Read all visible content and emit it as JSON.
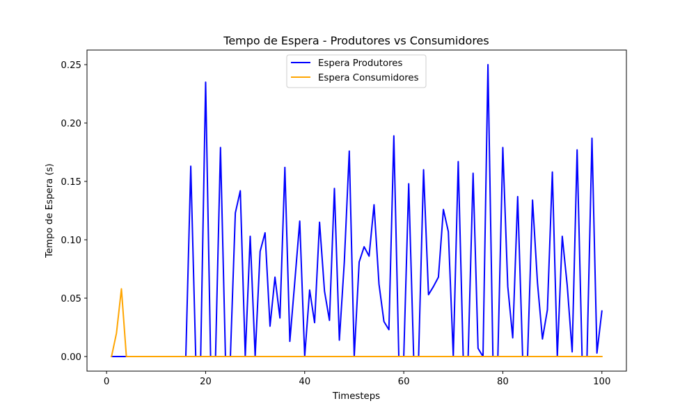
{
  "chart_data": {
    "type": "line",
    "title": "Tempo de Espera - Produtores vs Consumidores",
    "xlabel": "Timesteps",
    "ylabel": "Tempo de Espera (s)",
    "xlim": [
      -3.95,
      104.95
    ],
    "ylim": [
      -0.0125,
      0.2625
    ],
    "xticks": [
      0,
      20,
      40,
      60,
      80,
      100
    ],
    "xtick_labels": [
      "0",
      "20",
      "40",
      "60",
      "80",
      "100"
    ],
    "yticks": [
      0.0,
      0.05,
      0.1,
      0.15,
      0.2,
      0.25
    ],
    "ytick_labels": [
      "0.00",
      "0.05",
      "0.10",
      "0.15",
      "0.20",
      "0.25"
    ],
    "grid": false,
    "legend_position": "top-center",
    "x": [
      1,
      2,
      3,
      4,
      5,
      6,
      7,
      8,
      9,
      10,
      11,
      12,
      13,
      14,
      15,
      16,
      17,
      18,
      19,
      20,
      21,
      22,
      23,
      24,
      25,
      26,
      27,
      28,
      29,
      30,
      31,
      32,
      33,
      34,
      35,
      36,
      37,
      38,
      39,
      40,
      41,
      42,
      43,
      44,
      45,
      46,
      47,
      48,
      49,
      50,
      51,
      52,
      53,
      54,
      55,
      56,
      57,
      58,
      59,
      60,
      61,
      62,
      63,
      64,
      65,
      66,
      67,
      68,
      69,
      70,
      71,
      72,
      73,
      74,
      75,
      76,
      77,
      78,
      79,
      80,
      81,
      82,
      83,
      84,
      85,
      86,
      87,
      88,
      89,
      90,
      91,
      92,
      93,
      94,
      95,
      96,
      97,
      98,
      99,
      100
    ],
    "series": [
      {
        "name": "Espera Produtores",
        "color": "#0000ff",
        "values": [
          0,
          0,
          0,
          0,
          0,
          0,
          0,
          0,
          0,
          0,
          0,
          0,
          0,
          0,
          0,
          0,
          0.163,
          0,
          0,
          0.235,
          0,
          0,
          0.179,
          0,
          0,
          0.123,
          0.142,
          0,
          0.103,
          0,
          0.09,
          0.106,
          0.026,
          0.068,
          0.033,
          0.162,
          0.013,
          0.064,
          0.116,
          0,
          0.057,
          0.029,
          0.115,
          0.056,
          0.031,
          0.144,
          0.014,
          0.081,
          0.176,
          0,
          0.081,
          0.094,
          0.086,
          0.13,
          0.062,
          0.03,
          0.023,
          0.189,
          0,
          0,
          0.148,
          0,
          0,
          0.16,
          0.053,
          0.06,
          0.068,
          0.126,
          0.107,
          0,
          0.167,
          0,
          0,
          0.157,
          0.007,
          0,
          0.25,
          0,
          0,
          0.179,
          0.06,
          0.016,
          0.137,
          0,
          0,
          0.134,
          0.063,
          0.015,
          0.04,
          0.158,
          0,
          0.103,
          0.061,
          0.004,
          0.177,
          0,
          0,
          0.187,
          0.003,
          0.039
        ]
      },
      {
        "name": "Espera Consumidores",
        "color": "#ffa500",
        "values": [
          0,
          0.02,
          0.058,
          0,
          0,
          0,
          0,
          0,
          0,
          0,
          0,
          0,
          0,
          0,
          0,
          0,
          0,
          0,
          0,
          0,
          0,
          0,
          0,
          0,
          0,
          0,
          0,
          0,
          0,
          0,
          0,
          0,
          0,
          0,
          0,
          0,
          0,
          0,
          0,
          0,
          0,
          0,
          0,
          0,
          0,
          0,
          0,
          0,
          0,
          0,
          0,
          0,
          0,
          0,
          0,
          0,
          0,
          0,
          0,
          0,
          0,
          0,
          0,
          0,
          0,
          0,
          0,
          0,
          0,
          0,
          0,
          0,
          0,
          0,
          0,
          0,
          0,
          0,
          0,
          0,
          0,
          0,
          0,
          0,
          0,
          0,
          0,
          0,
          0,
          0,
          0,
          0,
          0,
          0,
          0,
          0,
          0,
          0,
          0,
          0
        ]
      }
    ]
  }
}
